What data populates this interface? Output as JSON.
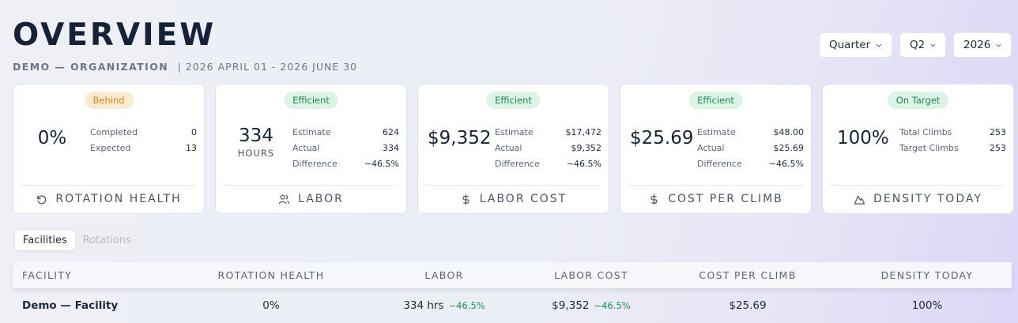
{
  "header": {
    "title": "OVERVIEW",
    "org": "DEMO — ORGANIZATION",
    "range": "| 2026 APRIL 01 - 2026 JUNE 30"
  },
  "filters": {
    "period_type": "Quarter",
    "period": "Q2",
    "year": "2026"
  },
  "cards": {
    "rotation": {
      "badge": "Behind",
      "value": "0%",
      "stats": [
        {
          "label": "Completed",
          "value": "0"
        },
        {
          "label": "Expected",
          "value": "13"
        }
      ],
      "footer": "ROTATION HEALTH",
      "icon": "refresh-icon"
    },
    "labor": {
      "badge": "Efficient",
      "value": "334",
      "unit": "HOURS",
      "stats": [
        {
          "label": "Estimate",
          "value": "624"
        },
        {
          "label": "Actual",
          "value": "334"
        },
        {
          "label": "Difference",
          "value": "−46.5%"
        }
      ],
      "footer": "LABOR",
      "icon": "users-icon"
    },
    "labor_cost": {
      "badge": "Efficient",
      "value": "$9,352",
      "stats": [
        {
          "label": "Estimate",
          "value": "$17,472"
        },
        {
          "label": "Actual",
          "value": "$9,352"
        },
        {
          "label": "Difference",
          "value": "−46.5%"
        }
      ],
      "footer": "LABOR COST",
      "icon": "dollar-icon"
    },
    "cost_per_climb": {
      "badge": "Efficient",
      "value": "$25.69",
      "stats": [
        {
          "label": "Estimate",
          "value": "$48.00"
        },
        {
          "label": "Actual",
          "value": "$25.69"
        },
        {
          "label": "Difference",
          "value": "−46.5%"
        }
      ],
      "footer": "COST PER CLIMB",
      "icon": "dollar-icon"
    },
    "density": {
      "badge": "On Target",
      "value": "100%",
      "stats": [
        {
          "label": "Total Climbs",
          "value": "253"
        },
        {
          "label": "Target Climbs",
          "value": "253"
        }
      ],
      "footer": "DENSITY TODAY",
      "icon": "mountain-icon"
    }
  },
  "tabs": [
    {
      "label": "Facilities",
      "active": true
    },
    {
      "label": "Rotations",
      "active": false
    }
  ],
  "table": {
    "columns": [
      "FACILITY",
      "ROTATION HEALTH",
      "LABOR",
      "LABOR COST",
      "COST PER CLIMB",
      "DENSITY TODAY"
    ],
    "rows": [
      {
        "facility": "Demo — Facility",
        "rotation_health": "0%",
        "labor": "334 hrs",
        "labor_delta": "−46.5%",
        "labor_cost": "$9,352",
        "labor_cost_delta": "−46.5%",
        "cost_per_climb": "$25.69",
        "density": "100%"
      }
    ]
  },
  "colors": {
    "warn": "#e0820c",
    "good": "#1c8c52",
    "title": "#15223a"
  }
}
